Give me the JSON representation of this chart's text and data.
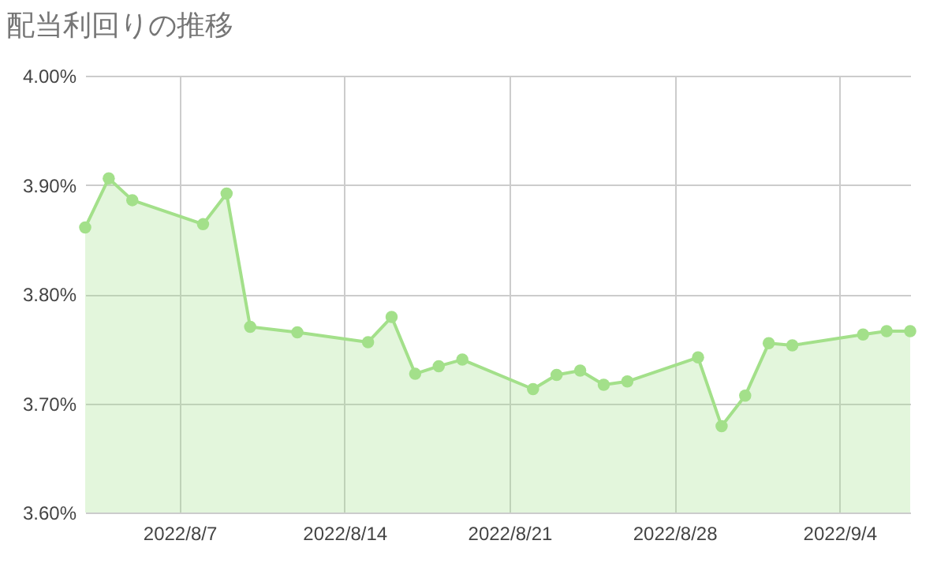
{
  "chart_data": {
    "type": "area",
    "title": "配当利回りの推移",
    "x": [
      "2022-08-03",
      "2022-08-04",
      "2022-08-05",
      "2022-08-08",
      "2022-08-09",
      "2022-08-10",
      "2022-08-12",
      "2022-08-15",
      "2022-08-16",
      "2022-08-17",
      "2022-08-18",
      "2022-08-19",
      "2022-08-22",
      "2022-08-23",
      "2022-08-24",
      "2022-08-25",
      "2022-08-26",
      "2022-08-29",
      "2022-08-30",
      "2022-08-31",
      "2022-09-01",
      "2022-09-02",
      "2022-09-05",
      "2022-09-06",
      "2022-09-07"
    ],
    "series": [
      {
        "color": "#a3e08a",
        "values": [
          3.861,
          3.906,
          3.886,
          3.864,
          3.892,
          3.77,
          3.765,
          3.756,
          3.779,
          3.727,
          3.734,
          3.74,
          3.713,
          3.726,
          3.73,
          3.717,
          3.72,
          3.742,
          3.679,
          3.707,
          3.755,
          3.753,
          3.763,
          3.766,
          3.766
        ]
      }
    ],
    "xlim": [
      "2022-08-03",
      "2022-09-07"
    ],
    "xticks": [
      {
        "value": "2022-08-07",
        "label": "2022/8/7"
      },
      {
        "value": "2022-08-14",
        "label": "2022/8/14"
      },
      {
        "value": "2022-08-21",
        "label": "2022/8/21"
      },
      {
        "value": "2022-08-28",
        "label": "2022/8/28"
      },
      {
        "value": "2022-09-04",
        "label": "2022/9/4"
      }
    ],
    "ylim": [
      3.6,
      4.0
    ],
    "yticks": [
      {
        "value": 3.6,
        "label": "3.60%"
      },
      {
        "value": 3.7,
        "label": "3.70%"
      },
      {
        "value": 3.8,
        "label": "3.80%"
      },
      {
        "value": 3.9,
        "label": "3.90%"
      },
      {
        "value": 4.0,
        "label": "4.00%"
      }
    ],
    "grid": true,
    "marker": "circle",
    "line_style": "solid"
  }
}
